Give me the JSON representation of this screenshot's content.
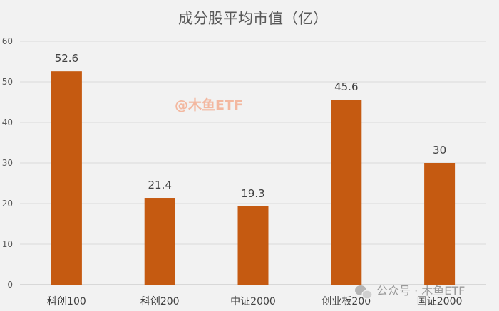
{
  "chart_data": {
    "type": "bar",
    "title": "成分股平均市值（亿）",
    "categories": [
      "科创100",
      "科创200",
      "中证2000",
      "创业板200",
      "国证2000"
    ],
    "values": [
      52.6,
      21.4,
      19.3,
      45.6,
      30
    ],
    "data_labels": [
      "52.6",
      "21.4",
      "19.3",
      "45.6",
      "30"
    ],
    "ylim": [
      0,
      60
    ],
    "yticks": [
      "0",
      "10",
      "20",
      "30",
      "40",
      "50",
      "60"
    ],
    "grid": true,
    "bar_color": "#c55a11",
    "xlabel": "",
    "ylabel": ""
  },
  "watermark": "@木鱼ETF",
  "footer_watermark": "公众号 · 木鱼ETF"
}
